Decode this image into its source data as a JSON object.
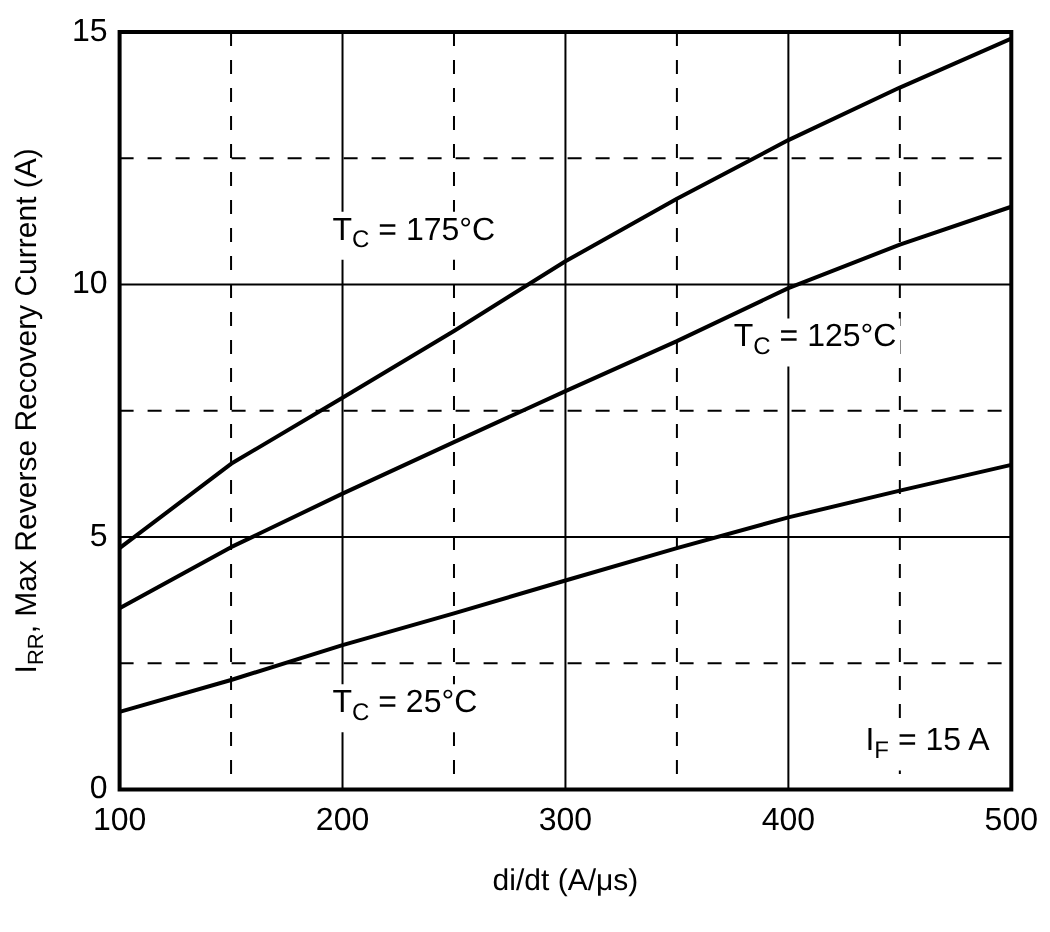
{
  "chart_data": {
    "type": "line",
    "xlabel": "di/dt (A/μs)",
    "ylabel": "I$_{RR}$, Max Reverse Recovery Current (A)",
    "x": [
      100,
      150,
      200,
      250,
      300,
      350,
      400,
      450,
      500
    ],
    "series": [
      {
        "name": "T$_{C}$ = 175°C",
        "color": "#000000",
        "values": [
          4.78,
          6.45,
          7.76,
          9.08,
          10.46,
          11.7,
          12.86,
          13.9,
          14.87
        ]
      },
      {
        "name": "T$_{C}$ = 125°C",
        "color": "#000000",
        "values": [
          3.59,
          4.8,
          5.86,
          6.88,
          7.89,
          8.88,
          9.93,
          10.79,
          11.54
        ]
      },
      {
        "name": "T$_{C}$ = 25°C",
        "color": "#000000",
        "values": [
          1.54,
          2.17,
          2.86,
          3.49,
          4.14,
          4.78,
          5.39,
          5.92,
          6.43
        ]
      }
    ],
    "xlim": [
      100,
      500
    ],
    "ylim": [
      0,
      15
    ],
    "xticks": [
      100,
      {
        "value": 150,
        "label": null
      },
      200,
      {
        "value": 250,
        "label": null
      },
      300,
      {
        "value": 350,
        "label": null
      },
      400,
      {
        "value": 450,
        "label": null
      },
      500
    ],
    "yticks": [
      0,
      {
        "value": 2.5,
        "label": null
      },
      5,
      {
        "value": 7.5,
        "label": null
      },
      10,
      {
        "value": 12.5,
        "label": null
      },
      15
    ],
    "grid": true,
    "legend": false,
    "marker": "none",
    "line_style": "solid",
    "annotations": [
      "I$_{F}$ = 15 A"
    ]
  }
}
